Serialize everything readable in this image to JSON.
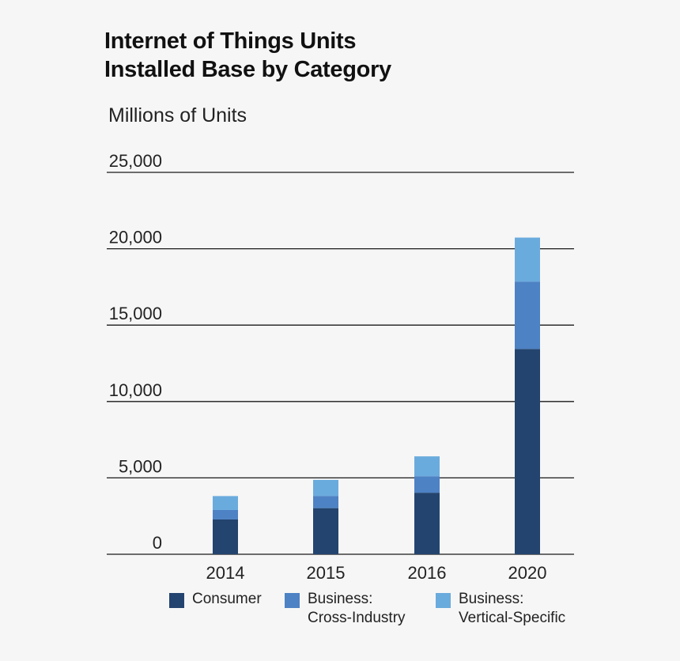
{
  "chart_data": {
    "type": "bar",
    "stacked": true,
    "title": [
      "Internet of Things Units",
      "Installed Base by Category"
    ],
    "ylabel": "Millions of Units",
    "xlabel": "",
    "ylim": [
      0,
      25000
    ],
    "yticks": [
      0,
      5000,
      10000,
      15000,
      20000,
      25000
    ],
    "ytick_labels": [
      "0",
      "5,000",
      "10,000",
      "15,000",
      "20,000",
      "25,000"
    ],
    "categories": [
      "2014",
      "2015",
      "2016",
      "2020"
    ],
    "series": [
      {
        "name": "Consumer",
        "color": "#23446f",
        "values": [
          2280,
          3020,
          4030,
          13440
        ]
      },
      {
        "name": "Business:\nCross-Industry",
        "color": "#4d82c4",
        "values": [
          620,
          800,
          1080,
          4410
        ]
      },
      {
        "name": "Business:\nVertical-Specific",
        "color": "#6aabdd",
        "values": [
          910,
          1050,
          1300,
          2880
        ]
      }
    ],
    "grid": true,
    "legend_position": "bottom"
  }
}
